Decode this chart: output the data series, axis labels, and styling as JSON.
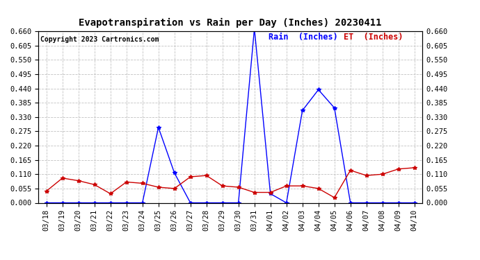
{
  "title": "Evapotranspiration vs Rain per Day (Inches) 20230411",
  "copyright": "Copyright 2023 Cartronics.com",
  "legend_rain": "Rain  (Inches)",
  "legend_et": "ET  (Inches)",
  "dates": [
    "03/18",
    "03/19",
    "03/20",
    "03/21",
    "03/22",
    "03/23",
    "03/24",
    "03/25",
    "03/26",
    "03/27",
    "03/28",
    "03/29",
    "03/30",
    "03/31",
    "04/01",
    "04/02",
    "04/03",
    "04/04",
    "04/05",
    "04/06",
    "04/07",
    "04/08",
    "04/09",
    "04/10"
  ],
  "rain": [
    0.0,
    0.0,
    0.0,
    0.0,
    0.0,
    0.0,
    0.0,
    0.29,
    0.115,
    0.0,
    0.0,
    0.0,
    0.0,
    0.67,
    0.035,
    0.0,
    0.355,
    0.435,
    0.365,
    0.0,
    0.0,
    0.0,
    0.0,
    0.0
  ],
  "et": [
    0.045,
    0.095,
    0.085,
    0.07,
    0.035,
    0.08,
    0.075,
    0.06,
    0.055,
    0.1,
    0.105,
    0.065,
    0.06,
    0.04,
    0.04,
    0.065,
    0.065,
    0.055,
    0.02,
    0.125,
    0.105,
    0.11,
    0.13,
    0.135
  ],
  "ylim": [
    0.0,
    0.66
  ],
  "yticks": [
    0.0,
    0.055,
    0.11,
    0.165,
    0.22,
    0.275,
    0.33,
    0.385,
    0.44,
    0.495,
    0.55,
    0.605,
    0.66
  ],
  "rain_color": "#0000ff",
  "et_color": "#cc0000",
  "grid_color": "#bbbbbb",
  "background_color": "#ffffff",
  "title_fontsize": 10,
  "copyright_fontsize": 7,
  "legend_fontsize": 8.5,
  "tick_fontsize": 7.5
}
